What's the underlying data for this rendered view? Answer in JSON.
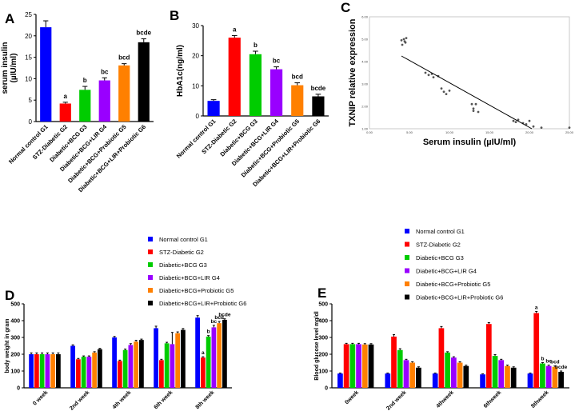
{
  "chart_data": [
    {
      "panel": "A",
      "type": "bar",
      "ylabel_lines": [
        "serum insulin",
        "(µIU/ml)"
      ],
      "ylim": [
        0,
        25
      ],
      "yticks": [
        0,
        5,
        10,
        15,
        20,
        25
      ],
      "categories": [
        "Normal control G1",
        "STZ-Diabetic G2",
        "Diabetic+BCG G3",
        "Diabetic+BCG+LIR G4",
        "Diabetic+BCG+Probiotic G5",
        "Diabetic+BCG+LIR+Probiotic G6"
      ],
      "values": [
        22.0,
        4.2,
        7.4,
        9.6,
        13.1,
        18.5
      ],
      "errors": [
        1.5,
        0.3,
        0.8,
        0.6,
        0.4,
        0.8
      ],
      "colors": [
        "#0000ff",
        "#ff0000",
        "#00cc00",
        "#9900ff",
        "#ff8000",
        "#000000"
      ],
      "sig_labels": [
        "",
        "a",
        "b",
        "bc",
        "bcd",
        "bcde"
      ]
    },
    {
      "panel": "B",
      "type": "bar",
      "ylabel_lines": [
        "HbA1c(ng/ml)"
      ],
      "ylim": [
        0,
        30
      ],
      "yticks": [
        0,
        10,
        20,
        30
      ],
      "categories": [
        "Normal control G1",
        "STZ-Diabetic G2",
        "Diabetic+BCG G3",
        "Diabetic+BCG+LIR G4",
        "Diabetic+BCG+Probiotic G5",
        "Diabetic+BCG+LIR+Probiotic G6"
      ],
      "values": [
        5.0,
        26.0,
        20.5,
        15.5,
        10.2,
        6.5
      ],
      "errors": [
        0.4,
        0.7,
        1.0,
        0.8,
        0.8,
        0.7
      ],
      "colors": [
        "#0000ff",
        "#ff0000",
        "#00cc00",
        "#9900ff",
        "#ff8000",
        "#000000"
      ],
      "sig_labels": [
        "",
        "a",
        "b",
        "bc",
        "bcd",
        "bcde"
      ]
    },
    {
      "panel": "C",
      "type": "scatter",
      "xlabel": "Serum insulin (µIU/ml)",
      "ylabel": "TXNIP relative expression",
      "xlim": [
        0,
        25
      ],
      "ylim": [
        1,
        6
      ],
      "xticks": [
        "0.00",
        "5.00",
        "10.00",
        "15.00",
        "20.00",
        "25.00"
      ],
      "yticks": [
        "1.00",
        "2.00",
        "3.00",
        "4.00",
        "5.00",
        "6.00"
      ],
      "points": [
        [
          4.0,
          4.95
        ],
        [
          4.3,
          5.0
        ],
        [
          4.5,
          4.85
        ],
        [
          4.6,
          5.05
        ],
        [
          4.1,
          4.75
        ],
        [
          4.4,
          4.9
        ],
        [
          7.0,
          3.5
        ],
        [
          7.4,
          3.4
        ],
        [
          7.8,
          3.45
        ],
        [
          8.0,
          3.3
        ],
        [
          8.6,
          3.35
        ],
        [
          9.0,
          2.8
        ],
        [
          9.3,
          2.65
        ],
        [
          9.6,
          2.55
        ],
        [
          10.0,
          2.7
        ],
        [
          12.8,
          2.1
        ],
        [
          13.0,
          1.9
        ],
        [
          13.3,
          2.1
        ],
        [
          13.6,
          1.75
        ],
        [
          13.0,
          1.8
        ],
        [
          18.0,
          1.35
        ],
        [
          18.3,
          1.3
        ],
        [
          18.6,
          1.4
        ],
        [
          19.2,
          1.25
        ],
        [
          19.6,
          1.2
        ],
        [
          20.0,
          1.35
        ],
        [
          20.5,
          1.1
        ],
        [
          21.5,
          1.05
        ],
        [
          25.0,
          1.05
        ]
      ],
      "fit_line": {
        "x": [
          4.0,
          20.3
        ],
        "y": [
          4.25,
          1.0
        ]
      }
    },
    {
      "panel": "D",
      "type": "bar",
      "ylabel": "body weight in gram",
      "ylim": [
        0,
        500
      ],
      "yticks": [
        0,
        100,
        200,
        300,
        400,
        500
      ],
      "categories": [
        "0 week",
        "2nd week",
        "4th week",
        "6th week",
        "8th week"
      ],
      "series": [
        {
          "name": "Normal control G1",
          "color": "#0000ff",
          "values": [
            200,
            250,
            300,
            355,
            418
          ],
          "errors": [
            8,
            6,
            6,
            12,
            12
          ]
        },
        {
          "name": "STZ-Diabetic G2",
          "color": "#ff0000",
          "values": [
            200,
            170,
            160,
            165,
            180
          ],
          "errors": [
            8,
            5,
            5,
            5,
            5
          ]
        },
        {
          "name": "Diabetic+BCG G3",
          "color": "#00cc00",
          "values": [
            200,
            185,
            225,
            265,
            305
          ],
          "errors": [
            8,
            5,
            6,
            6,
            6
          ]
        },
        {
          "name": "Diabetic+BCG+LIR G4",
          "color": "#9900ff",
          "values": [
            200,
            185,
            255,
            260,
            360
          ],
          "errors": [
            8,
            5,
            8,
            70,
            12
          ]
        },
        {
          "name": "Diabetic+BCG+Probiotic G5",
          "color": "#ff8000",
          "values": [
            200,
            210,
            275,
            325,
            385
          ],
          "errors": [
            8,
            5,
            8,
            8,
            10
          ]
        },
        {
          "name": "Diabetic+BCG+LIR+Probiotic G6",
          "color": "#000000",
          "values": [
            200,
            230,
            285,
            345,
            405
          ],
          "errors": [
            8,
            5,
            5,
            8,
            6
          ]
        }
      ],
      "sig_labels_last_group": [
        "",
        "a",
        "b",
        "bc",
        "bcd",
        "bcde"
      ]
    },
    {
      "panel": "E",
      "type": "bar",
      "ylabel": "Blood glucose level mg/dl",
      "ylim": [
        0,
        500
      ],
      "yticks": [
        0,
        100,
        200,
        300,
        400,
        500
      ],
      "categories": [
        "0week",
        "2nd week",
        "4thweek",
        "6thweek",
        "8thweek"
      ],
      "series": [
        {
          "name": "Normal control G1",
          "color": "#0000ff",
          "values": [
            85,
            85,
            85,
            80,
            85
          ],
          "errors": [
            3,
            3,
            3,
            3,
            3
          ]
        },
        {
          "name": "STZ-Diabetic G2",
          "color": "#ff0000",
          "values": [
            260,
            305,
            355,
            380,
            445
          ],
          "errors": [
            5,
            12,
            10,
            8,
            10
          ]
        },
        {
          "name": "Diabetic+BCG G3",
          "color": "#00cc00",
          "values": [
            260,
            225,
            210,
            190,
            145
          ],
          "errors": [
            5,
            8,
            5,
            8,
            5
          ]
        },
        {
          "name": "Diabetic+BCG+LIR G4",
          "color": "#9900ff",
          "values": [
            260,
            165,
            180,
            165,
            130
          ],
          "errors": [
            5,
            5,
            5,
            5,
            5
          ]
        },
        {
          "name": "Diabetic+BCG+Probiotic G5",
          "color": "#ff8000",
          "values": [
            258,
            150,
            150,
            130,
            125
          ],
          "errors": [
            5,
            5,
            5,
            5,
            5
          ]
        },
        {
          "name": "Diabetic+BCG+LIR+Probiotic G6",
          "color": "#000000",
          "values": [
            258,
            120,
            130,
            120,
            95
          ],
          "errors": [
            5,
            5,
            5,
            5,
            5
          ]
        }
      ],
      "sig_labels_last_group": [
        "",
        "a",
        "b",
        "bc",
        "bcd",
        "bcde"
      ]
    }
  ]
}
